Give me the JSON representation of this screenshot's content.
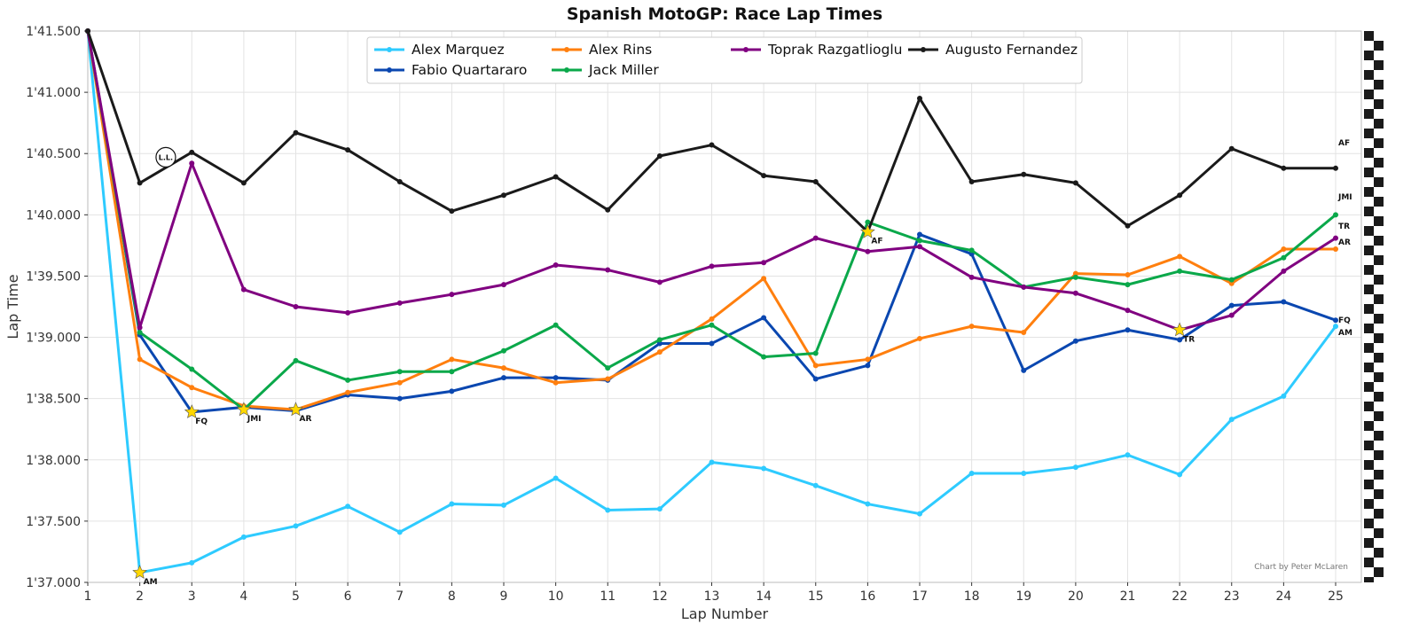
{
  "chart_data": {
    "type": "line",
    "title": "Spanish MotoGP: Race Lap Times",
    "xlabel": "Lap Number",
    "ylabel": "Lap Time",
    "x": [
      1,
      2,
      3,
      4,
      5,
      6,
      7,
      8,
      9,
      10,
      11,
      12,
      13,
      14,
      15,
      16,
      17,
      18,
      19,
      20,
      21,
      22,
      23,
      24,
      25
    ],
    "ylim": [
      97.0,
      101.5
    ],
    "y_ticks": [
      {
        "value": 97.0,
        "label": "1'37.000"
      },
      {
        "value": 97.5,
        "label": "1'37.500"
      },
      {
        "value": 98.0,
        "label": "1'38.000"
      },
      {
        "value": 98.5,
        "label": "1'38.500"
      },
      {
        "value": 99.0,
        "label": "1'39.000"
      },
      {
        "value": 99.5,
        "label": "1'39.500"
      },
      {
        "value": 100.0,
        "label": "1'40.000"
      },
      {
        "value": 100.5,
        "label": "1'40.500"
      },
      {
        "value": 101.0,
        "label": "1'41.000"
      },
      {
        "value": 101.5,
        "label": "1'41.500"
      }
    ],
    "grid": true,
    "legend_placement": "top-center",
    "series": [
      {
        "name": "Alex Marquez",
        "abbr": "AM",
        "color": "#2ecbff",
        "best_lap": 2,
        "values": [
          101.5,
          97.08,
          97.16,
          97.37,
          97.46,
          97.62,
          97.41,
          97.64,
          97.63,
          97.85,
          97.59,
          97.6,
          97.98,
          97.93,
          97.79,
          97.64,
          97.56,
          97.89,
          97.89,
          97.94,
          98.04,
          97.88,
          98.33,
          98.52,
          99.09
        ]
      },
      {
        "name": "Fabio Quartararo",
        "abbr": "FQ",
        "color": "#0a47b0",
        "best_lap": 3,
        "values": [
          101.5,
          99.02,
          98.39,
          98.43,
          98.4,
          98.53,
          98.5,
          98.56,
          98.67,
          98.67,
          98.65,
          98.95,
          98.95,
          99.16,
          98.66,
          98.77,
          99.84,
          99.68,
          98.73,
          98.97,
          99.06,
          98.98,
          99.26,
          99.29,
          99.14
        ]
      },
      {
        "name": "Alex Rins",
        "abbr": "AR",
        "color": "#ff7f0e",
        "best_lap": 5,
        "values": [
          101.5,
          98.82,
          98.59,
          98.44,
          98.41,
          98.55,
          98.63,
          98.82,
          98.75,
          98.63,
          98.66,
          98.88,
          99.15,
          99.48,
          98.77,
          98.82,
          98.99,
          99.09,
          99.04,
          99.52,
          99.51,
          99.66,
          99.44,
          99.72,
          99.72
        ]
      },
      {
        "name": "Jack Miller",
        "abbr": "JMI",
        "color": "#0aa84a",
        "best_lap": 4,
        "values": [
          101.5,
          99.04,
          98.74,
          98.41,
          98.81,
          98.65,
          98.72,
          98.72,
          98.89,
          99.1,
          98.75,
          98.98,
          99.1,
          98.84,
          98.87,
          99.94,
          99.79,
          99.71,
          99.41,
          99.49,
          99.43,
          99.54,
          99.47,
          99.65,
          100.0
        ]
      },
      {
        "name": "Toprak Razgatlioglu",
        "abbr": "TR",
        "color": "#800080",
        "best_lap": 22,
        "values": [
          101.5,
          99.08,
          100.42,
          99.39,
          99.25,
          99.2,
          99.28,
          99.35,
          99.43,
          99.59,
          99.55,
          99.45,
          99.58,
          99.61,
          99.81,
          99.7,
          99.74,
          99.49,
          99.41,
          99.36,
          99.22,
          99.06,
          99.18,
          99.54,
          99.81
        ]
      },
      {
        "name": "Augusto Fernandez",
        "abbr": "AF",
        "color": "#1a1a1a",
        "best_lap": 16,
        "values": [
          101.5,
          100.26,
          100.51,
          100.26,
          100.67,
          100.53,
          100.27,
          100.03,
          100.16,
          100.31,
          100.04,
          100.48,
          100.57,
          100.32,
          100.27,
          99.86,
          100.95,
          100.27,
          100.33,
          100.26,
          99.91,
          100.16,
          100.54,
          100.38,
          100.38
        ]
      }
    ],
    "annotations": [
      {
        "text": "L.L.",
        "x": 2.5,
        "y": 100.47
      }
    ],
    "credit": "Chart by Peter McLaren",
    "best_lap_marker_color": "#ffd700"
  }
}
